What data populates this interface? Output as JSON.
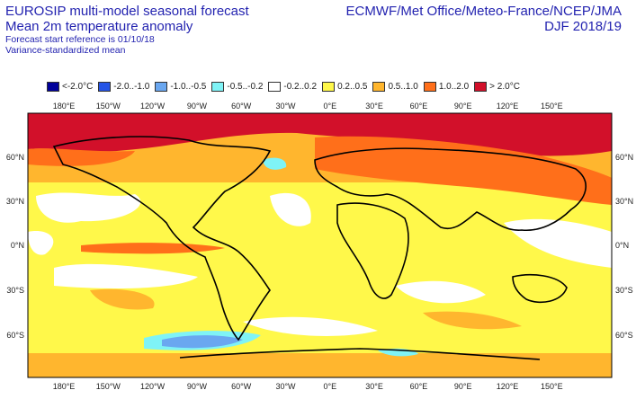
{
  "header": {
    "title_line1": "EUROSIP multi-model seasonal forecast",
    "title_line2": "Mean 2m temperature anomaly",
    "sub_line1": "Forecast start reference is 01/10/18",
    "sub_line2": "Variance-standardized mean",
    "centers": "ECMWF/Met Office/Meteo-France/NCEP/JMA",
    "period": "DJF 2018/19"
  },
  "legend": {
    "items": [
      {
        "label": "<-2.0°C",
        "color": "#00009a"
      },
      {
        "label": "-2.0..-1.0",
        "color": "#2554e6"
      },
      {
        "label": "-1.0..-0.5",
        "color": "#6aa7f0"
      },
      {
        "label": "-0.5..-0.2",
        "color": "#7ff3f6"
      },
      {
        "label": "-0.2..0.2",
        "color": "#ffffff"
      },
      {
        "label": "0.2..0.5",
        "color": "#fff84a"
      },
      {
        "label": "0.5..1.0",
        "color": "#ffb62e"
      },
      {
        "label": "1.0..2.0",
        "color": "#ff6f1a"
      },
      {
        "label": "> 2.0°C",
        "color": "#d2102a"
      }
    ]
  },
  "axes": {
    "top_lon": [
      "180°E",
      "150°W",
      "120°W",
      "90°W",
      "60°W",
      "30°W",
      "0°E",
      "30°E",
      "60°E",
      "90°E",
      "120°E",
      "150°E"
    ],
    "bottom_lon": [
      "180°E",
      "150°W",
      "120°W",
      "90°W",
      "60°W",
      "30°W",
      "0°E",
      "30°E",
      "60°E",
      "90°E",
      "120°E",
      "150°E"
    ],
    "lat": [
      "60°N",
      "30°N",
      "0°N",
      "30°S",
      "60°S"
    ]
  }
}
